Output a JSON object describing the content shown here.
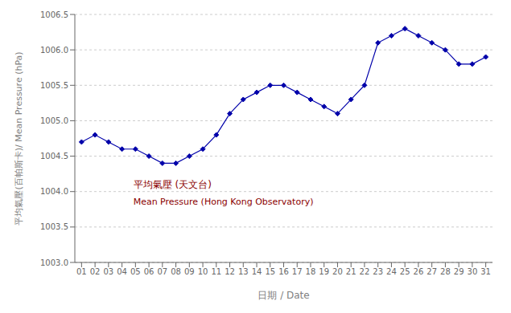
{
  "chart_data": {
    "type": "line",
    "x_label": "日期 / Date",
    "y_label": "平均氣壓(百帕斯卡)/ Mean Pressure (hPa)",
    "x": [
      1,
      2,
      3,
      4,
      5,
      6,
      7,
      8,
      9,
      10,
      11,
      12,
      13,
      14,
      15,
      16,
      17,
      18,
      19,
      20,
      21,
      22,
      23,
      24,
      25,
      26,
      27,
      28,
      29,
      30,
      31
    ],
    "values": [
      1004.7,
      1004.8,
      1004.7,
      1004.6,
      1004.6,
      1004.5,
      1004.4,
      1004.4,
      1004.5,
      1004.6,
      1004.8,
      1005.1,
      1005.3,
      1005.4,
      1005.5,
      1005.5,
      1005.4,
      1005.3,
      1005.2,
      1005.1,
      1005.3,
      1005.5,
      1006.1,
      1006.2,
      1006.3,
      1006.2,
      1006.1,
      1006.0,
      1005.8,
      1005.8,
      1005.9
    ],
    "color": "#0000AA",
    "marker": "diamond",
    "xlim": [
      0.5,
      31.5
    ],
    "xticks": [
      {
        "value": 1,
        "label": "01"
      },
      {
        "value": 2,
        "label": "02"
      },
      {
        "value": 3,
        "label": "03"
      },
      {
        "value": 4,
        "label": "04"
      },
      {
        "value": 5,
        "label": "05"
      },
      {
        "value": 6,
        "label": "06"
      },
      {
        "value": 7,
        "label": "07"
      },
      {
        "value": 8,
        "label": "08"
      },
      {
        "value": 9,
        "label": "09"
      },
      {
        "value": 10,
        "label": "10"
      },
      {
        "value": 11,
        "label": "11"
      },
      {
        "value": 12,
        "label": "12"
      },
      {
        "value": 13,
        "label": "13"
      },
      {
        "value": 14,
        "label": "14"
      },
      {
        "value": 15,
        "label": "15"
      },
      {
        "value": 16,
        "label": "16"
      },
      {
        "value": 17,
        "label": "17"
      },
      {
        "value": 18,
        "label": "18"
      },
      {
        "value": 19,
        "label": "19"
      },
      {
        "value": 20,
        "label": "20"
      },
      {
        "value": 21,
        "label": "21"
      },
      {
        "value": 22,
        "label": "22"
      },
      {
        "value": 23,
        "label": "23"
      },
      {
        "value": 24,
        "label": "24"
      },
      {
        "value": 25,
        "label": "25"
      },
      {
        "value": 26,
        "label": "26"
      },
      {
        "value": 27,
        "label": "27"
      },
      {
        "value": 28,
        "label": "28"
      },
      {
        "value": 29,
        "label": "29"
      },
      {
        "value": 30,
        "label": "30"
      },
      {
        "value": 31,
        "label": "31"
      }
    ],
    "ylim": [
      1003.0,
      1006.5
    ],
    "yticks": [
      {
        "value": 1003.0,
        "label": "1003.0"
      },
      1003.5,
      {
        "value": 1004.0,
        "label": "1004.0"
      },
      1004.5,
      {
        "value": 1005.0,
        "label": "1005.0"
      },
      1005.5,
      {
        "value": 1006.0,
        "label": "1006.0"
      },
      1006.5
    ],
    "grid": true,
    "annotations": [
      {
        "text": "平均氣壓 (天文台)",
        "color": "#8B0000"
      },
      {
        "text": "Mean Pressure (Hong Kong Observatory)",
        "color": "#8B0000"
      }
    ]
  }
}
